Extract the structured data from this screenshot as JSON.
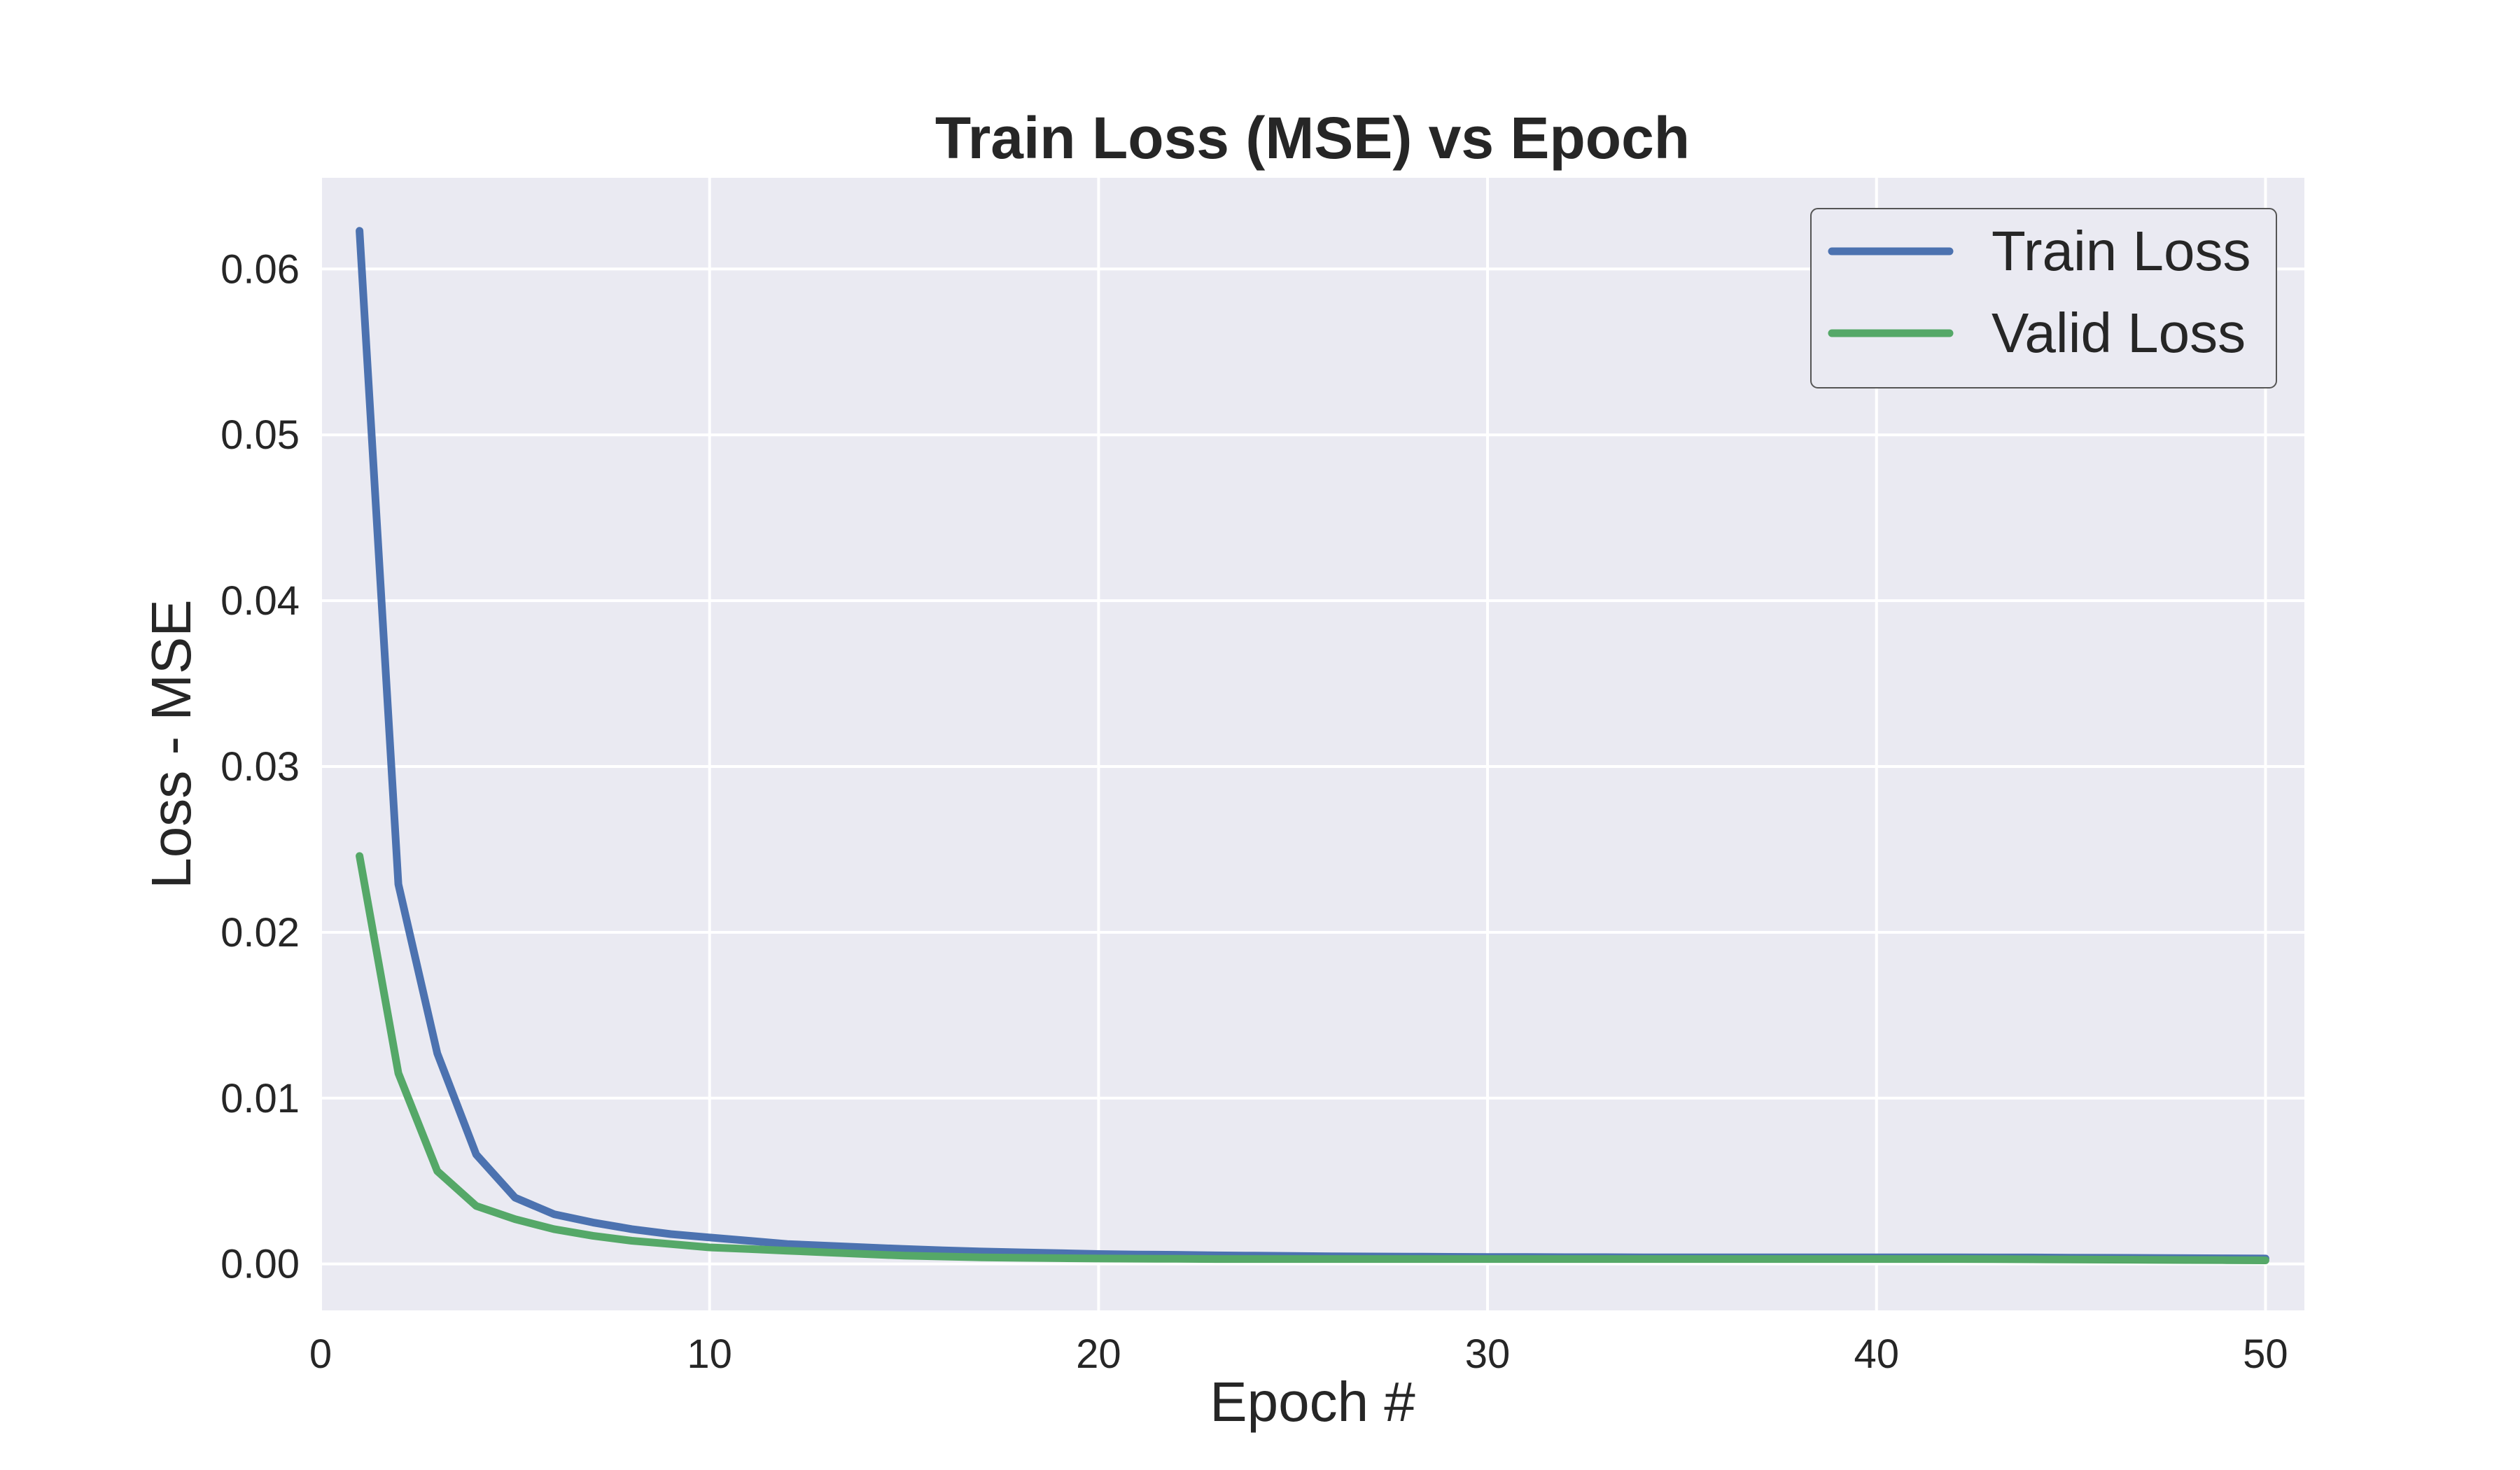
{
  "chart_data": {
    "type": "line",
    "title": "Train Loss (MSE) vs Epoch",
    "xlabel": "Epoch #",
    "ylabel": "Loss - MSE",
    "xlim": [
      0,
      51
    ],
    "ylim": [
      -0.0028,
      0.0655
    ],
    "xticks": [
      0,
      10,
      20,
      30,
      40,
      50
    ],
    "xtick_labels": [
      "0",
      "10",
      "20",
      "30",
      "40",
      "50"
    ],
    "yticks": [
      0.0,
      0.01,
      0.02,
      0.03,
      0.04,
      0.05,
      0.06
    ],
    "ytick_labels": [
      "0.00",
      "0.01",
      "0.02",
      "0.03",
      "0.04",
      "0.05",
      "0.06"
    ],
    "grid": true,
    "legend_position": "top-right",
    "background_color": "#EAEAF2",
    "grid_color": "#FFFFFF",
    "x": [
      1,
      2,
      3,
      4,
      5,
      6,
      7,
      8,
      9,
      10,
      11,
      12,
      13,
      14,
      15,
      16,
      17,
      18,
      19,
      20,
      21,
      22,
      23,
      24,
      25,
      26,
      27,
      28,
      29,
      30,
      31,
      32,
      33,
      34,
      35,
      36,
      37,
      38,
      39,
      40,
      41,
      42,
      43,
      44,
      45,
      46,
      47,
      48,
      49,
      50
    ],
    "series": [
      {
        "name": "Train Loss",
        "color": "#4C72B0",
        "values": [
          0.0623,
          0.0229,
          0.0127,
          0.0066,
          0.004,
          0.003,
          0.0025,
          0.0021,
          0.0018,
          0.0016,
          0.0014,
          0.0012,
          0.0011,
          0.001,
          0.0009,
          0.00082,
          0.00075,
          0.0007,
          0.00065,
          0.0006,
          0.00057,
          0.00055,
          0.00052,
          0.0005,
          0.00048,
          0.00046,
          0.00045,
          0.00044,
          0.00043,
          0.00042,
          0.00042,
          0.00041,
          0.00041,
          0.0004,
          0.0004,
          0.0004,
          0.0004,
          0.0004,
          0.0004,
          0.0004,
          0.0004,
          0.0004,
          0.00039,
          0.00039,
          0.00038,
          0.00037,
          0.00036,
          0.00035,
          0.00034,
          0.00033
        ]
      },
      {
        "name": "Valid Loss",
        "color": "#55A868",
        "values": [
          0.0246,
          0.0115,
          0.0056,
          0.0035,
          0.0027,
          0.0021,
          0.0017,
          0.0014,
          0.0012,
          0.001,
          0.0009,
          0.0008,
          0.0007,
          0.0006,
          0.0005,
          0.00045,
          0.0004,
          0.00037,
          0.00035,
          0.00033,
          0.00032,
          0.00031,
          0.0003,
          0.0003,
          0.0003,
          0.0003,
          0.0003,
          0.0003,
          0.0003,
          0.0003,
          0.0003,
          0.0003,
          0.0003,
          0.0003,
          0.0003,
          0.0003,
          0.0003,
          0.0003,
          0.0003,
          0.0003,
          0.0003,
          0.0003,
          0.00029,
          0.00028,
          0.00027,
          0.00026,
          0.00025,
          0.00024,
          0.00023,
          0.00022
        ]
      }
    ]
  }
}
